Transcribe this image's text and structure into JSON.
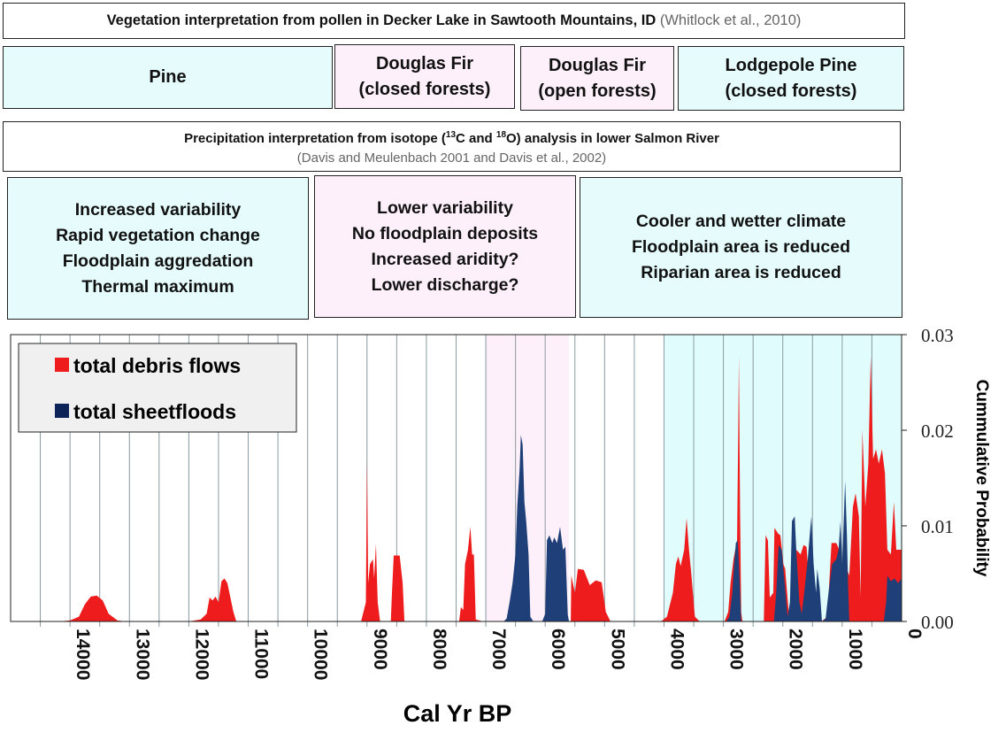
{
  "vegetation": {
    "title": "Vegetation interpretation from pollen in Decker Lake in Sawtooth Mountains, ID",
    "citation": "(Whitlock et al., 2010)",
    "zones": [
      {
        "line1": "Pine",
        "line2": "",
        "color": "#e6fcfc"
      },
      {
        "line1": "Douglas Fir",
        "line2": "(closed forests)",
        "color": "#fdf0fa"
      },
      {
        "line1": "Douglas Fir",
        "line2": "(open forests)",
        "color": "#fdf0fa"
      },
      {
        "line1": "Lodgepole Pine",
        "line2": "(closed forests)",
        "color": "#e6fcfc"
      }
    ]
  },
  "precipitation": {
    "title_pre": "Precipitation interpretation from isotope (",
    "sup1": "13",
    "mid1": "C  and ",
    "sup2": "18",
    "title_post": "O) analysis in lower Salmon River",
    "citation": "(Davis and Meulenbach 2001  and Davis et al., 2002)",
    "zones": [
      {
        "lines": [
          "Increased variability",
          "Rapid vegetation change",
          "Floodplain aggredation",
          "Thermal maximum"
        ],
        "color": "#e6fcfc"
      },
      {
        "lines": [
          "Lower variability",
          "No floodplain deposits",
          "Increased aridity?",
          "Lower discharge?"
        ],
        "color": "#fdf0fa"
      },
      {
        "lines": [
          "Cooler and wetter climate",
          "Floodplain area is reduced",
          "Riparian area is reduced"
        ],
        "color": "#e6fcfc"
      }
    ]
  },
  "chart_data": {
    "type": "area",
    "xlabel": "Cal Yr BP",
    "ylabel": "Cummulative Probability",
    "xlim": [
      15000,
      0
    ],
    "ylim": [
      0,
      0.03
    ],
    "x_ticks": [
      "14000",
      "13000",
      "12000",
      "11000",
      "10000",
      "9000",
      "8000",
      "7000",
      "6000",
      "5000",
      "4000",
      "3000",
      "2000",
      "1000",
      "0"
    ],
    "y_ticks": [
      "0.00",
      "0.01",
      "0.02",
      "0.03"
    ],
    "grid": "vertical every 500 yr",
    "legend_position": "top-left",
    "shaded_periods": [
      {
        "from": 7000,
        "to": 5600,
        "color": "#fdf0fa"
      },
      {
        "from": 4000,
        "to": 0,
        "color": "#e0fcfc"
      }
    ],
    "series": [
      {
        "name": "total debris flows",
        "color": "#ee1c1c",
        "segments": [
          [
            [
              14200,
              0
            ],
            [
              14000,
              0.0001
            ],
            [
              13850,
              0.0005
            ],
            [
              13750,
              0.0018
            ],
            [
              13650,
              0.0026
            ],
            [
              13550,
              0.0027
            ],
            [
              13450,
              0.0022
            ],
            [
              13350,
              0.0008
            ],
            [
              13200,
              0.0001
            ],
            [
              13050,
              0
            ]
          ],
          [
            [
              12000,
              0
            ],
            [
              11800,
              0.0002
            ],
            [
              11700,
              0.0008
            ],
            [
              11650,
              0.0025
            ],
            [
              11600,
              0.0022
            ],
            [
              11550,
              0.0026
            ],
            [
              11500,
              0.002
            ],
            [
              11450,
              0.0042
            ],
            [
              11400,
              0.0045
            ],
            [
              11350,
              0.004
            ],
            [
              11250,
              0.001
            ],
            [
              11200,
              0
            ]
          ],
          [
            [
              9100,
              0
            ],
            [
              9020,
              0.002
            ],
            [
              9000,
              0.017
            ],
            [
              8980,
              0.004
            ],
            [
              8950,
              0.006
            ],
            [
              8900,
              0.0065
            ],
            [
              8880,
              0.0045
            ],
            [
              8850,
              0.0081
            ],
            [
              8820,
              0.002
            ],
            [
              8780,
              0
            ]
          ],
          [
            [
              8600,
              0
            ],
            [
              8580,
              0.003
            ],
            [
              8550,
              0.0069
            ],
            [
              8450,
              0.0069
            ],
            [
              8400,
              0.004
            ],
            [
              8370,
              0
            ]
          ],
          [
            [
              7450,
              0
            ],
            [
              7420,
              0.0015
            ],
            [
              7380,
              0.0012
            ],
            [
              7350,
              0.006
            ],
            [
              7300,
              0.0075
            ],
            [
              7260,
              0.0099
            ],
            [
              7230,
              0.007
            ],
            [
              7200,
              0.007
            ],
            [
              7170,
              0.0002
            ],
            [
              7050,
              0
            ]
          ],
          [
            [
              5570,
              0
            ],
            [
              5560,
              0.0048
            ],
            [
              5500,
              0.003
            ],
            [
              5450,
              0.0055
            ],
            [
              5350,
              0.0054
            ],
            [
              5250,
              0.0038
            ],
            [
              5150,
              0.0043
            ],
            [
              5050,
              0.0041
            ],
            [
              4980,
              0.001
            ],
            [
              4900,
              0
            ]
          ],
          [
            [
              4050,
              0
            ],
            [
              3950,
              0.0005
            ],
            [
              3850,
              0.003
            ],
            [
              3800,
              0.006
            ],
            [
              3760,
              0.0068
            ],
            [
              3720,
              0.0058
            ],
            [
              3660,
              0.0075
            ],
            [
              3620,
              0.0108
            ],
            [
              3580,
              0.0075
            ],
            [
              3540,
              0.005
            ],
            [
              3480,
              0.0005
            ],
            [
              3400,
              0
            ]
          ],
          [
            [
              2980,
              0
            ],
            [
              2920,
              0.001
            ],
            [
              2880,
              0.004
            ],
            [
              2830,
              0.0065
            ],
            [
              2800,
              0.0075
            ],
            [
              2770,
              0.008
            ],
            [
              2750,
              0.02
            ],
            [
              2740,
              0.0277
            ],
            [
              2720,
              0.012
            ],
            [
              2700,
              0.001
            ],
            [
              2680,
              0
            ]
          ],
          [
            [
              2320,
              0
            ],
            [
              2290,
              0.009
            ],
            [
              2250,
              0.0085
            ],
            [
              2220,
              0.0025
            ],
            [
              2160,
              0.003
            ],
            [
              2140,
              0.0098
            ],
            [
              2080,
              0.0092
            ],
            [
              2040,
              0.009
            ],
            [
              1990,
              0.006
            ],
            [
              1960,
              0.0055
            ],
            [
              1900,
              0.001
            ],
            [
              1800,
              0.002
            ],
            [
              1770,
              0.0075
            ],
            [
              1700,
              0.007
            ],
            [
              1650,
              0.008
            ],
            [
              1600,
              0.0078
            ],
            [
              1560,
              0.004
            ],
            [
              1520,
              0.0025
            ],
            [
              1480,
              0.0005
            ],
            [
              1350,
              0
            ],
            [
              1250,
              0.0005
            ],
            [
              1180,
              0.0082
            ],
            [
              1100,
              0.0082
            ],
            [
              1050,
              0.0075
            ],
            [
              1000,
              0.002
            ],
            [
              920,
              0.0055
            ],
            [
              880,
              0.0048
            ],
            [
              820,
              0.012
            ],
            [
              775,
              0.0134
            ],
            [
              720,
              0.011
            ],
            [
              690,
              0.0025
            ],
            [
              660,
              0.02
            ],
            [
              610,
              0.012
            ],
            [
              560,
              0.0165
            ],
            [
              520,
              0.0277
            ],
            [
              480,
              0.017
            ],
            [
              430,
              0.018
            ],
            [
              385,
              0.0165
            ],
            [
              330,
              0.018
            ],
            [
              280,
              0.0155
            ],
            [
              240,
              0.0075
            ],
            [
              180,
              0.007
            ],
            [
              130,
              0.0125
            ],
            [
              90,
              0.0075
            ],
            [
              0,
              0.0075
            ]
          ]
        ]
      },
      {
        "name": "total sheetfloods",
        "color": "#1f3f78",
        "segments": [
          [
            [
              6700,
              0
            ],
            [
              6650,
              0.0003
            ],
            [
              6600,
              0.002
            ],
            [
              6550,
              0.004
            ],
            [
              6500,
              0.007
            ],
            [
              6470,
              0.012
            ],
            [
              6430,
              0.016
            ],
            [
              6410,
              0.0195
            ],
            [
              6380,
              0.0185
            ],
            [
              6350,
              0.0125
            ],
            [
              6320,
              0.0105
            ],
            [
              6280,
              0.007
            ],
            [
              6250,
              0.0005
            ],
            [
              6200,
              0
            ]
          ],
          [
            [
              6050,
              0
            ],
            [
              6000,
              0.0008
            ],
            [
              5970,
              0.0085
            ],
            [
              5930,
              0.009
            ],
            [
              5880,
              0.0082
            ],
            [
              5850,
              0.0088
            ],
            [
              5800,
              0.0082
            ],
            [
              5750,
              0.0099
            ],
            [
              5700,
              0.0075
            ],
            [
              5660,
              0.0078
            ],
            [
              5620,
              0.0007
            ],
            [
              5600,
              0
            ]
          ],
          [
            [
              2950,
              0
            ],
            [
              2900,
              0.0005
            ],
            [
              2850,
              0.003
            ],
            [
              2820,
              0.006
            ],
            [
              2790,
              0.0082
            ],
            [
              2760,
              0.0085
            ],
            [
              2730,
              0.005
            ],
            [
              2700,
              0
            ]
          ],
          [
            [
              2150,
              0
            ],
            [
              2110,
              0.003
            ],
            [
              2070,
              0.008
            ],
            [
              2020,
              0.0075
            ],
            [
              1960,
              0.0035
            ],
            [
              1920,
              0.0005
            ],
            [
              1880,
              0.002
            ],
            [
              1845,
              0.0105
            ],
            [
              1800,
              0.011
            ],
            [
              1770,
              0.007
            ],
            [
              1720,
              0.002
            ],
            [
              1680,
              0.0008
            ],
            [
              1640,
              0.003
            ],
            [
              1580,
              0.0065
            ],
            [
              1520,
              0.011
            ],
            [
              1480,
              0.006
            ],
            [
              1440,
              0.003
            ],
            [
              1420,
              0.0055
            ],
            [
              1380,
              0.0035
            ],
            [
              1340,
              0
            ],
            [
              1280,
              0.0003
            ],
            [
              1230,
              0.003
            ],
            [
              1170,
              0.006
            ],
            [
              1100,
              0.0065
            ],
            [
              1060,
              0.0075
            ],
            [
              1030,
              0.0105
            ],
            [
              1000,
              0.006
            ],
            [
              950,
              0.0147
            ],
            [
              920,
              0.009
            ],
            [
              900,
              0.0035
            ],
            [
              880,
              0
            ]
          ],
          [
            [
              300,
              0
            ],
            [
              260,
              0.002
            ],
            [
              240,
              0.0048
            ],
            [
              180,
              0.0042
            ],
            [
              120,
              0.0045
            ],
            [
              60,
              0.004
            ],
            [
              0,
              0.0045
            ]
          ]
        ]
      }
    ]
  }
}
